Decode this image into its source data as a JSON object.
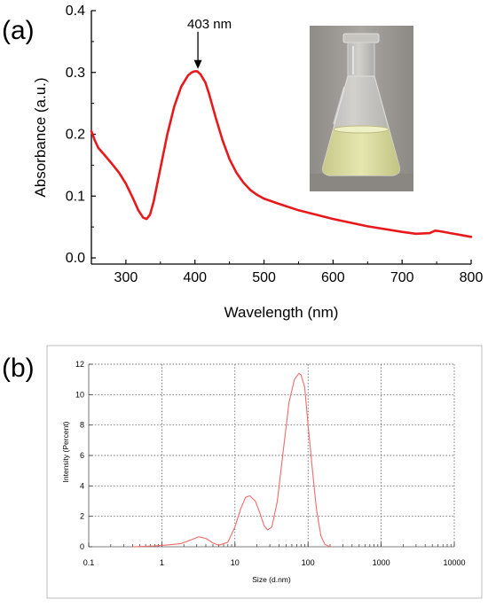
{
  "chart_data": [
    {
      "panel_label": "(a)",
      "type": "line",
      "xlabel": "Wavelength (nm)",
      "ylabel": "Absorbance (a.u.)",
      "xlim": [
        250,
        800
      ],
      "ylim": [
        -0.01,
        0.4
      ],
      "xticks": [
        300,
        400,
        500,
        600,
        700,
        800
      ],
      "yticks": [
        0.0,
        0.1,
        0.2,
        0.3,
        0.4
      ],
      "ytick_labels": [
        "0.0",
        "0.1",
        "0.2",
        "0.3",
        "0.4"
      ],
      "grid": false,
      "series_color": "#e8191c",
      "annotation": {
        "text": "403 nm",
        "x": 403,
        "y": 0.3
      },
      "inset_image": "conical-flask-pale-yellow-solution",
      "series": [
        {
          "x": [
            250,
            255,
            260,
            270,
            280,
            290,
            300,
            310,
            318,
            325,
            330,
            335,
            340,
            350,
            360,
            370,
            380,
            390,
            395,
            400,
            403,
            408,
            415,
            420,
            430,
            440,
            450,
            460,
            470,
            480,
            490,
            500,
            520,
            550,
            600,
            650,
            700,
            720,
            740,
            748,
            755,
            770,
            800
          ],
          "y": [
            0.205,
            0.19,
            0.178,
            0.165,
            0.152,
            0.138,
            0.12,
            0.097,
            0.077,
            0.065,
            0.063,
            0.07,
            0.09,
            0.145,
            0.2,
            0.245,
            0.277,
            0.295,
            0.3,
            0.302,
            0.302,
            0.297,
            0.284,
            0.267,
            0.227,
            0.19,
            0.16,
            0.138,
            0.122,
            0.11,
            0.102,
            0.096,
            0.088,
            0.077,
            0.063,
            0.051,
            0.042,
            0.039,
            0.04,
            0.044,
            0.043,
            0.04,
            0.034
          ]
        }
      ]
    },
    {
      "panel_label": "(b)",
      "type": "line",
      "xlabel": "Size (d.nm)",
      "ylabel": "Intensity (Percent)",
      "xscale": "log",
      "xlim": [
        0.1,
        10000
      ],
      "ylim": [
        0,
        12
      ],
      "xticks": [
        0.1,
        1,
        10,
        100,
        1000,
        10000
      ],
      "xtick_labels": [
        "0.1",
        "1",
        "10",
        "100",
        "1000",
        "10000"
      ],
      "yticks": [
        0,
        2,
        4,
        6,
        8,
        10,
        12
      ],
      "grid": true,
      "series_color": "#f26a6a",
      "series": [
        {
          "x": [
            0.4,
            0.8,
            1.2,
            1.8,
            2.5,
            3.2,
            4.0,
            5.0,
            6.0,
            8.0,
            10,
            12,
            14,
            16,
            19,
            22,
            25,
            28,
            32,
            38,
            45,
            55,
            65,
            75,
            80,
            90,
            100,
            115,
            130,
            150,
            170,
            200
          ],
          "y": [
            0,
            0.05,
            0.12,
            0.2,
            0.45,
            0.65,
            0.55,
            0.25,
            0.1,
            0.3,
            1.3,
            2.5,
            3.25,
            3.35,
            3.0,
            2.2,
            1.4,
            1.1,
            1.3,
            3.0,
            6.0,
            9.5,
            11.0,
            11.4,
            11.3,
            10.5,
            8.0,
            5.0,
            2.5,
            0.7,
            0.15,
            0
          ]
        }
      ]
    }
  ]
}
